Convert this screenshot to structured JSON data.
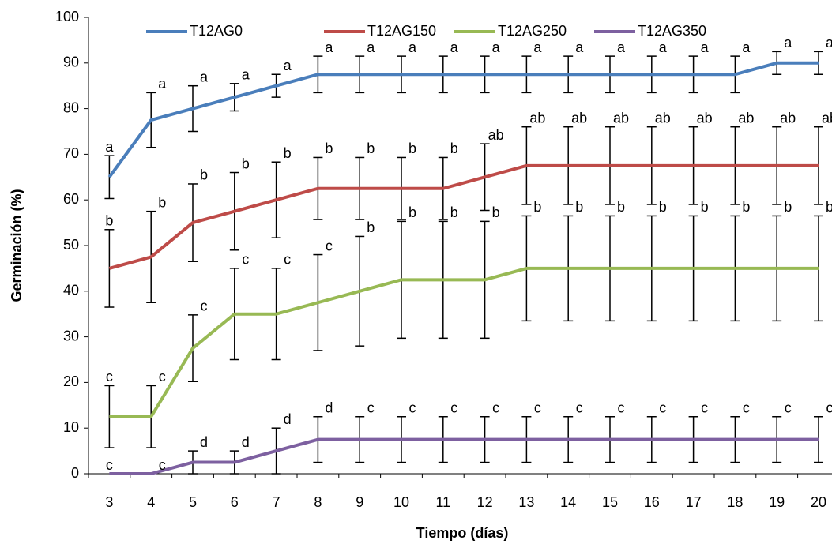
{
  "chart_data": {
    "type": "line",
    "x_label": "Tiempo (días)",
    "y_label": "Germinación (%)",
    "categories": [
      "3",
      "4",
      "5",
      "6",
      "7",
      "8",
      "9",
      "10",
      "11",
      "12",
      "13",
      "14",
      "15",
      "16",
      "17",
      "18",
      "19",
      "20"
    ],
    "ylim": [
      0,
      100
    ],
    "yticks": [
      0,
      10,
      20,
      30,
      40,
      50,
      60,
      70,
      80,
      90,
      100
    ],
    "grid": false,
    "legend": "top",
    "series": [
      {
        "name": "T12AG0",
        "color": "#4a7ebb",
        "values": [
          65,
          77.5,
          80,
          82.5,
          85,
          87.5,
          87.5,
          87.5,
          87.5,
          87.5,
          87.5,
          87.5,
          87.5,
          87.5,
          87.5,
          87.5,
          90,
          90
        ],
        "errors": [
          4.7,
          6,
          5,
          3,
          2.5,
          4,
          4,
          4,
          4,
          4,
          4,
          4,
          4,
          4,
          4,
          4,
          2.5,
          2.5
        ],
        "letters": [
          "a",
          "a",
          "a",
          "a",
          "a",
          "a",
          "a",
          "a",
          "a",
          "a",
          "a",
          "a",
          "a",
          "a",
          "a",
          "a",
          "a",
          "a"
        ]
      },
      {
        "name": "T12AG150",
        "color": "#be4b48",
        "values": [
          45,
          47.5,
          55,
          57.5,
          60,
          62.5,
          62.5,
          62.5,
          62.5,
          65,
          67.5,
          67.5,
          67.5,
          67.5,
          67.5,
          67.5,
          67.5,
          67.5
        ],
        "errors": [
          8.5,
          10,
          8.5,
          8.5,
          8.3,
          6.8,
          6.8,
          6.8,
          6.8,
          7.3,
          8.5,
          8.5,
          8.5,
          8.5,
          8.5,
          8.5,
          8.5,
          8.5
        ],
        "letters": [
          "b",
          "b",
          "b",
          "b",
          "b",
          "b",
          "b",
          "b",
          "b",
          "ab",
          "ab",
          "ab",
          "ab",
          "ab",
          "ab",
          "ab",
          "ab",
          "ab"
        ]
      },
      {
        "name": "T12AG250",
        "color": "#98b954",
        "values": [
          12.5,
          12.5,
          27.5,
          35,
          35,
          37.5,
          40,
          42.5,
          42.5,
          42.5,
          45,
          45,
          45,
          45,
          45,
          45,
          45,
          45
        ],
        "errors": [
          6.8,
          6.8,
          7.3,
          10,
          10,
          10.5,
          12,
          12.8,
          12.8,
          12.8,
          11.5,
          11.5,
          11.5,
          11.5,
          11.5,
          11.5,
          11.5,
          11.5
        ],
        "letters": [
          "c",
          "c",
          "c",
          "c",
          "c",
          "c",
          "b",
          "b",
          "b",
          "b",
          "b",
          "b",
          "b",
          "b",
          "b",
          "b",
          "b",
          "b"
        ]
      },
      {
        "name": "T12AG350",
        "color": "#7d60a0",
        "values": [
          0,
          0,
          2.5,
          2.5,
          5,
          7.5,
          7.5,
          7.5,
          7.5,
          7.5,
          7.5,
          7.5,
          7.5,
          7.5,
          7.5,
          7.5,
          7.5,
          7.5
        ],
        "errors": [
          0,
          0,
          2.5,
          2.5,
          5,
          5,
          5,
          5,
          5,
          5,
          5,
          5,
          5,
          5,
          5,
          5,
          5,
          5
        ],
        "letters": [
          "c",
          "c",
          "d",
          "d",
          "d",
          "d",
          "c",
          "c",
          "c",
          "c",
          "c",
          "c",
          "c",
          "c",
          "c",
          "c",
          "c",
          "c"
        ]
      }
    ]
  }
}
